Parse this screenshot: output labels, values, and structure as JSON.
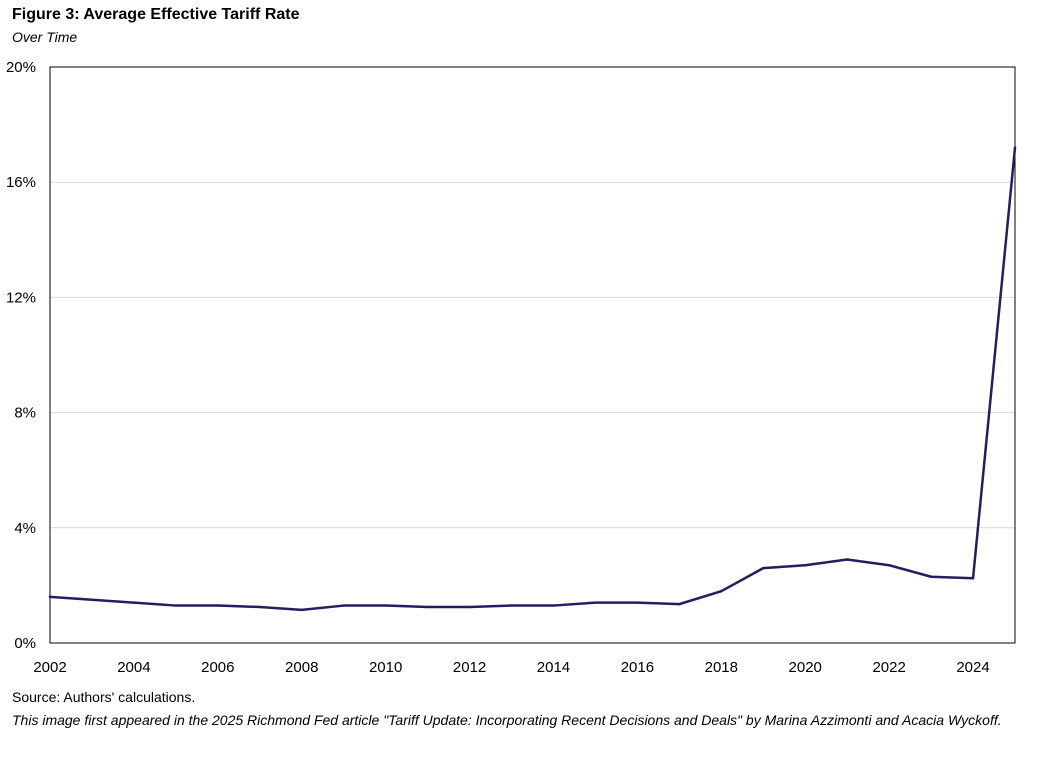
{
  "figure": {
    "title": "Figure 3: Average Effective Tariff Rate",
    "subtitle": "Over Time"
  },
  "footer": {
    "source": "Source: Authors' calculations.",
    "note": "This image first appeared in the 2025  Richmond Fed article  \"Tariff Update: Incorporating Recent Decisions and Deals\" by Marina Azzimonti and Acacia Wyckoff."
  },
  "colors": {
    "line": "#231f5e",
    "grid": "#d9d9d9",
    "axis": "#000000"
  },
  "chart_data": {
    "type": "line",
    "title": "Figure 3: Average Effective Tariff Rate",
    "subtitle": "Over Time",
    "xlabel": "",
    "ylabel": "",
    "xlim": [
      2002,
      2025
    ],
    "ylim": [
      0,
      20
    ],
    "y_ticks": [
      0,
      4,
      8,
      12,
      16,
      20
    ],
    "y_tick_labels": [
      "0%",
      "4%",
      "8%",
      "12%",
      "16%",
      "20%"
    ],
    "x_ticks": [
      2002,
      2004,
      2006,
      2008,
      2010,
      2012,
      2014,
      2016,
      2018,
      2020,
      2022,
      2024
    ],
    "x_tick_labels": [
      "2002",
      "2004",
      "2006",
      "2008",
      "2010",
      "2012",
      "2014",
      "2016",
      "2018",
      "2020",
      "2022",
      "2024"
    ],
    "grid": true,
    "legend": "none",
    "series": [
      {
        "name": "Average Effective Tariff Rate",
        "x": [
          2002,
          2003,
          2004,
          2005,
          2006,
          2007,
          2008,
          2009,
          2010,
          2011,
          2012,
          2013,
          2014,
          2015,
          2016,
          2017,
          2018,
          2019,
          2020,
          2021,
          2022,
          2023,
          2024,
          2025
        ],
        "values": [
          1.6,
          1.5,
          1.4,
          1.3,
          1.3,
          1.25,
          1.15,
          1.3,
          1.3,
          1.25,
          1.25,
          1.3,
          1.3,
          1.4,
          1.4,
          1.35,
          1.8,
          2.6,
          2.7,
          2.9,
          2.7,
          2.3,
          2.25,
          17.2
        ]
      }
    ]
  }
}
